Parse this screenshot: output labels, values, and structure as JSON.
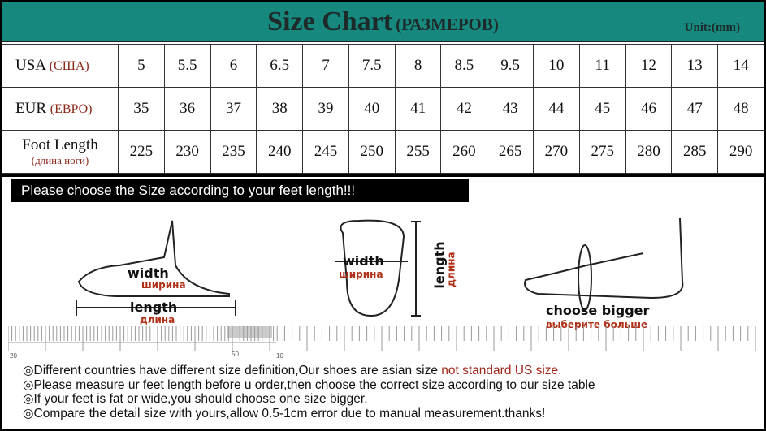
{
  "header": {
    "title": "Size Chart",
    "title_ru": "(РАЗМЕРОВ)",
    "unit": "Unit:(mm)",
    "color": "#16887d"
  },
  "table": {
    "rows": [
      {
        "label": "USA",
        "label_ru": "(США)",
        "values": [
          "5",
          "5.5",
          "6",
          "6.5",
          "7",
          "7.5",
          "8",
          "8.5",
          "9.5",
          "10",
          "11",
          "12",
          "13",
          "14"
        ]
      },
      {
        "label": "EUR",
        "label_ru": "(ЕВРО)",
        "values": [
          "35",
          "36",
          "37",
          "38",
          "39",
          "40",
          "41",
          "42",
          "43",
          "44",
          "45",
          "46",
          "47",
          "48"
        ]
      },
      {
        "label": "Foot Length",
        "label_ru": "(длина ноги)",
        "values": [
          "225",
          "230",
          "235",
          "240",
          "245",
          "250",
          "255",
          "260",
          "265",
          "270",
          "275",
          "280",
          "285",
          "290"
        ]
      }
    ]
  },
  "banner": "Please choose the Size according to your feet length!!!",
  "illustrations": {
    "side": {
      "width": "width",
      "width_ru": "ширина",
      "length": "length",
      "length_ru": "длина"
    },
    "top": {
      "width": "width",
      "width_ru": "ширина",
      "length": "length",
      "length_ru": "длина"
    },
    "bigger": {
      "label": "choose bigger",
      "label_ru": "выберите больше"
    }
  },
  "ruler": {
    "labels": [
      "20",
      "50",
      "10"
    ]
  },
  "notes": [
    {
      "text": "◎Different countries have different size definition,Our shoes are asian size ",
      "highlight": "not standard US size."
    },
    {
      "text": "◎Please measure ur feet length before u order,then choose the correct size according to our size table"
    },
    {
      "text": "◎If your feet is fat or wide,you should choose one size bigger."
    },
    {
      "text": "◎Compare the detail size with yours,allow 0.5-1cm error due to manual measurement.thanks!"
    }
  ]
}
